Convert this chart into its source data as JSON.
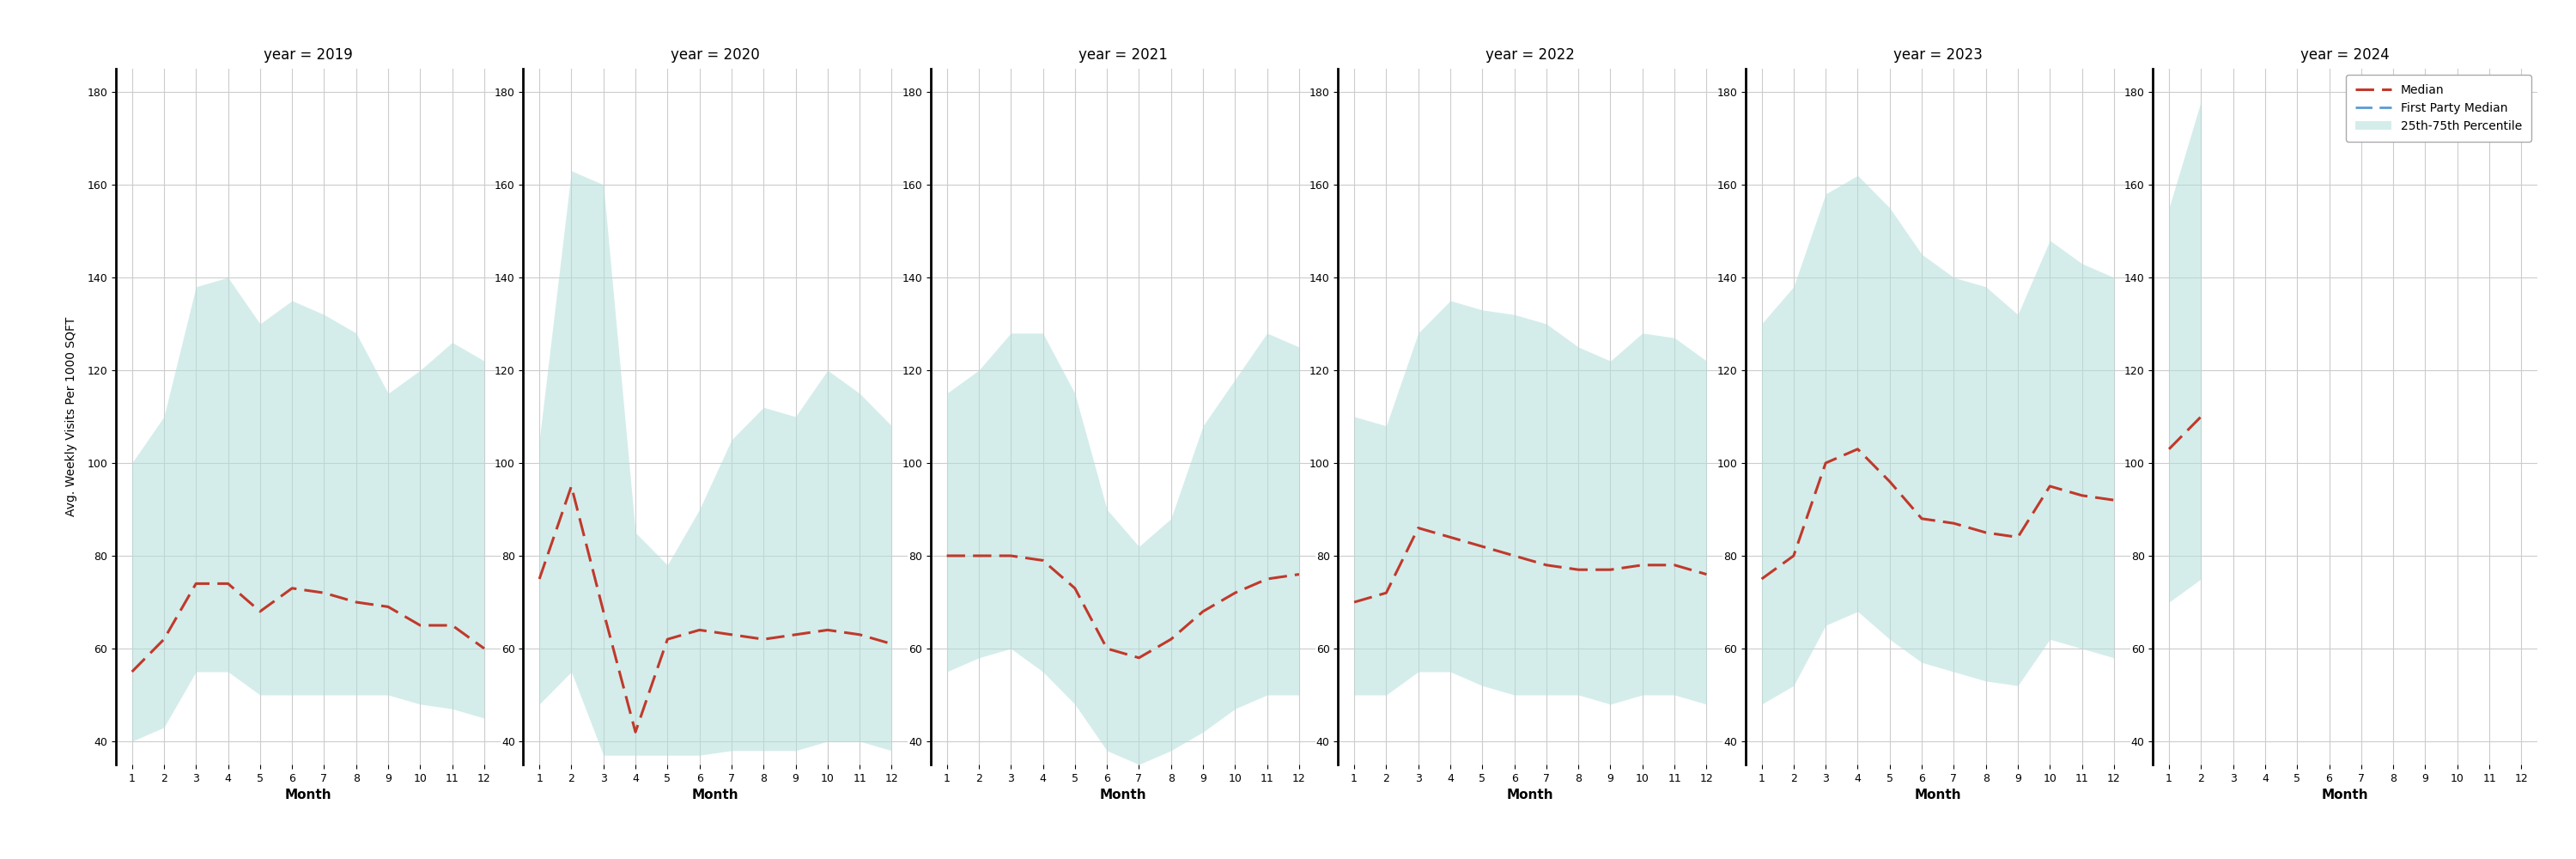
{
  "years": [
    2019,
    2020,
    2021,
    2022,
    2023,
    2024
  ],
  "months": [
    1,
    2,
    3,
    4,
    5,
    6,
    7,
    8,
    9,
    10,
    11,
    12
  ],
  "median": {
    "2019": [
      55,
      62,
      74,
      74,
      68,
      73,
      72,
      70,
      69,
      65,
      65,
      60
    ],
    "2020": [
      75,
      95,
      68,
      42,
      62,
      64,
      63,
      62,
      63,
      64,
      63,
      61
    ],
    "2021": [
      80,
      80,
      80,
      79,
      73,
      60,
      58,
      62,
      68,
      72,
      75,
      76
    ],
    "2022": [
      70,
      72,
      86,
      84,
      82,
      80,
      78,
      77,
      77,
      78,
      78,
      76
    ],
    "2023": [
      75,
      80,
      100,
      103,
      96,
      88,
      87,
      85,
      84,
      95,
      93,
      92
    ],
    "2024": [
      103,
      110,
      null,
      null,
      null,
      null,
      null,
      null,
      null,
      null,
      null,
      null
    ]
  },
  "q25": {
    "2019": [
      40,
      43,
      55,
      55,
      50,
      50,
      50,
      50,
      50,
      48,
      47,
      45
    ],
    "2020": [
      48,
      55,
      37,
      37,
      37,
      37,
      38,
      38,
      38,
      40,
      40,
      38
    ],
    "2021": [
      55,
      58,
      60,
      55,
      48,
      38,
      35,
      38,
      42,
      47,
      50,
      50
    ],
    "2022": [
      50,
      50,
      55,
      55,
      52,
      50,
      50,
      50,
      48,
      50,
      50,
      48
    ],
    "2023": [
      48,
      52,
      65,
      68,
      62,
      57,
      55,
      53,
      52,
      62,
      60,
      58
    ],
    "2024": [
      70,
      75,
      null,
      null,
      null,
      null,
      null,
      null,
      null,
      null,
      null,
      null
    ]
  },
  "q75": {
    "2019": [
      100,
      110,
      138,
      140,
      130,
      135,
      132,
      128,
      115,
      120,
      126,
      122
    ],
    "2020": [
      105,
      163,
      160,
      85,
      78,
      90,
      105,
      112,
      110,
      120,
      115,
      108
    ],
    "2021": [
      115,
      120,
      128,
      128,
      115,
      90,
      82,
      88,
      108,
      118,
      128,
      125
    ],
    "2022": [
      110,
      108,
      128,
      135,
      133,
      132,
      130,
      125,
      122,
      128,
      127,
      122
    ],
    "2023": [
      130,
      138,
      158,
      162,
      155,
      145,
      140,
      138,
      132,
      148,
      143,
      140
    ],
    "2024": [
      155,
      178,
      null,
      null,
      null,
      null,
      null,
      null,
      null,
      null,
      null,
      null
    ]
  },
  "ylim": [
    35,
    185
  ],
  "yticks": [
    40,
    60,
    80,
    100,
    120,
    140,
    160,
    180
  ],
  "ylabel": "Avg. Weekly Visits Per 1000 SQFT",
  "xlabel": "Month",
  "fill_color": "#b2dfdb",
  "fill_alpha": 0.55,
  "median_color": "#c0392b",
  "fp_median_color": "#5b9bd5",
  "bg_color": "#ffffff",
  "grid_color": "#cccccc",
  "title_fontsize": 12,
  "axis_fontsize": 10,
  "tick_fontsize": 9,
  "legend_fontsize": 10
}
